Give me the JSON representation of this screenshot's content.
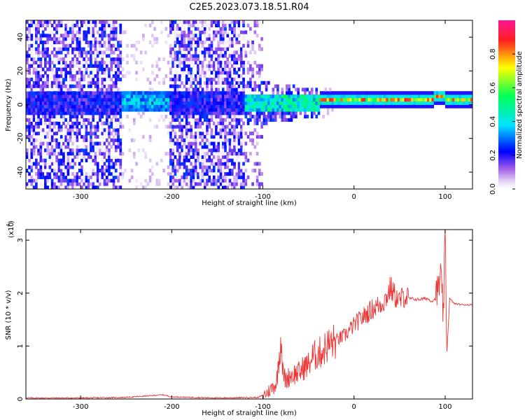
{
  "title": "C2E5.2023.073.18.51.R04",
  "chart_data": [
    {
      "type": "heatmap",
      "xlabel": "Height of straight line (km)",
      "ylabel": "Frequency (Hz)",
      "xlim": [
        -360,
        130
      ],
      "ylim": [
        -50,
        50
      ],
      "xticks": [
        -300,
        -200,
        -100,
        0,
        100
      ],
      "yticks": [
        -40,
        -20,
        0,
        20,
        40
      ],
      "colorbar": {
        "label": "Normalized spectral amplitude",
        "range": [
          0.0,
          1.0
        ],
        "ticks": [
          0.0,
          0.2,
          0.4,
          0.6,
          0.8
        ],
        "colors": [
          "#ffffff",
          "#e0c8f5",
          "#8a2be2",
          "#0000ff",
          "#00e5ff",
          "#00ff66",
          "#ffff00",
          "#ff2222",
          "#ff1493"
        ]
      },
      "regions": [
        {
          "x": [
            -360,
            -255
          ],
          "level": "scattered noise 0.1-0.3 across full band"
        },
        {
          "x": [
            -255,
            -205
          ],
          "level": "band near 0 Hz peaking ~0.45-0.5, faint noise elsewhere"
        },
        {
          "x": [
            -205,
            -120
          ],
          "level": "scattered noise 0.1-0.3 across full band"
        },
        {
          "x": [
            -120,
            -40
          ],
          "level": "band near 0 Hz 0.4-0.55, noise within +/-15 Hz"
        },
        {
          "x": [
            -40,
            130
          ],
          "level": "narrow band at ~1-3 Hz, 0.5-0.9"
        }
      ]
    },
    {
      "type": "line",
      "xlabel": "Height of straight line (km)",
      "ylabel": "SNR (10 * v/v)",
      "multiplier_label": "(x10",
      "multiplier_exp": "4",
      "xlim": [
        -360,
        130
      ],
      "ylim": [
        0,
        3.2
      ],
      "xticks": [
        -300,
        -200,
        -100,
        0,
        100
      ],
      "yticks": [
        0,
        1,
        2,
        3
      ],
      "color": "#ee3333",
      "series": [
        {
          "x": [
            -360,
            -300,
            -250,
            -225,
            -210,
            -200,
            -150,
            -105,
            -95,
            -85,
            -80,
            -78,
            -75,
            -70,
            -60,
            -55,
            -50,
            -45,
            -40,
            -35,
            -30,
            -20,
            -10,
            -5,
            0,
            10,
            20,
            30,
            35,
            40,
            45,
            50,
            55,
            60,
            70,
            80,
            85,
            90,
            95,
            98,
            100,
            102,
            105,
            110,
            120,
            130
          ],
          "y": [
            0.02,
            0.02,
            0.03,
            0.06,
            0.08,
            0.04,
            0.02,
            0.03,
            0.12,
            0.3,
            1.2,
            0.5,
            0.35,
            0.45,
            0.5,
            0.6,
            0.65,
            0.8,
            0.85,
            0.9,
            1.0,
            1.1,
            1.2,
            1.3,
            1.4,
            1.55,
            1.7,
            1.8,
            1.9,
            2.1,
            1.95,
            1.85,
            1.95,
            1.9,
            1.88,
            1.9,
            1.85,
            1.9,
            2.3,
            1.6,
            3.05,
            0.9,
            1.9,
            1.8,
            1.78,
            1.78
          ]
        }
      ]
    }
  ]
}
